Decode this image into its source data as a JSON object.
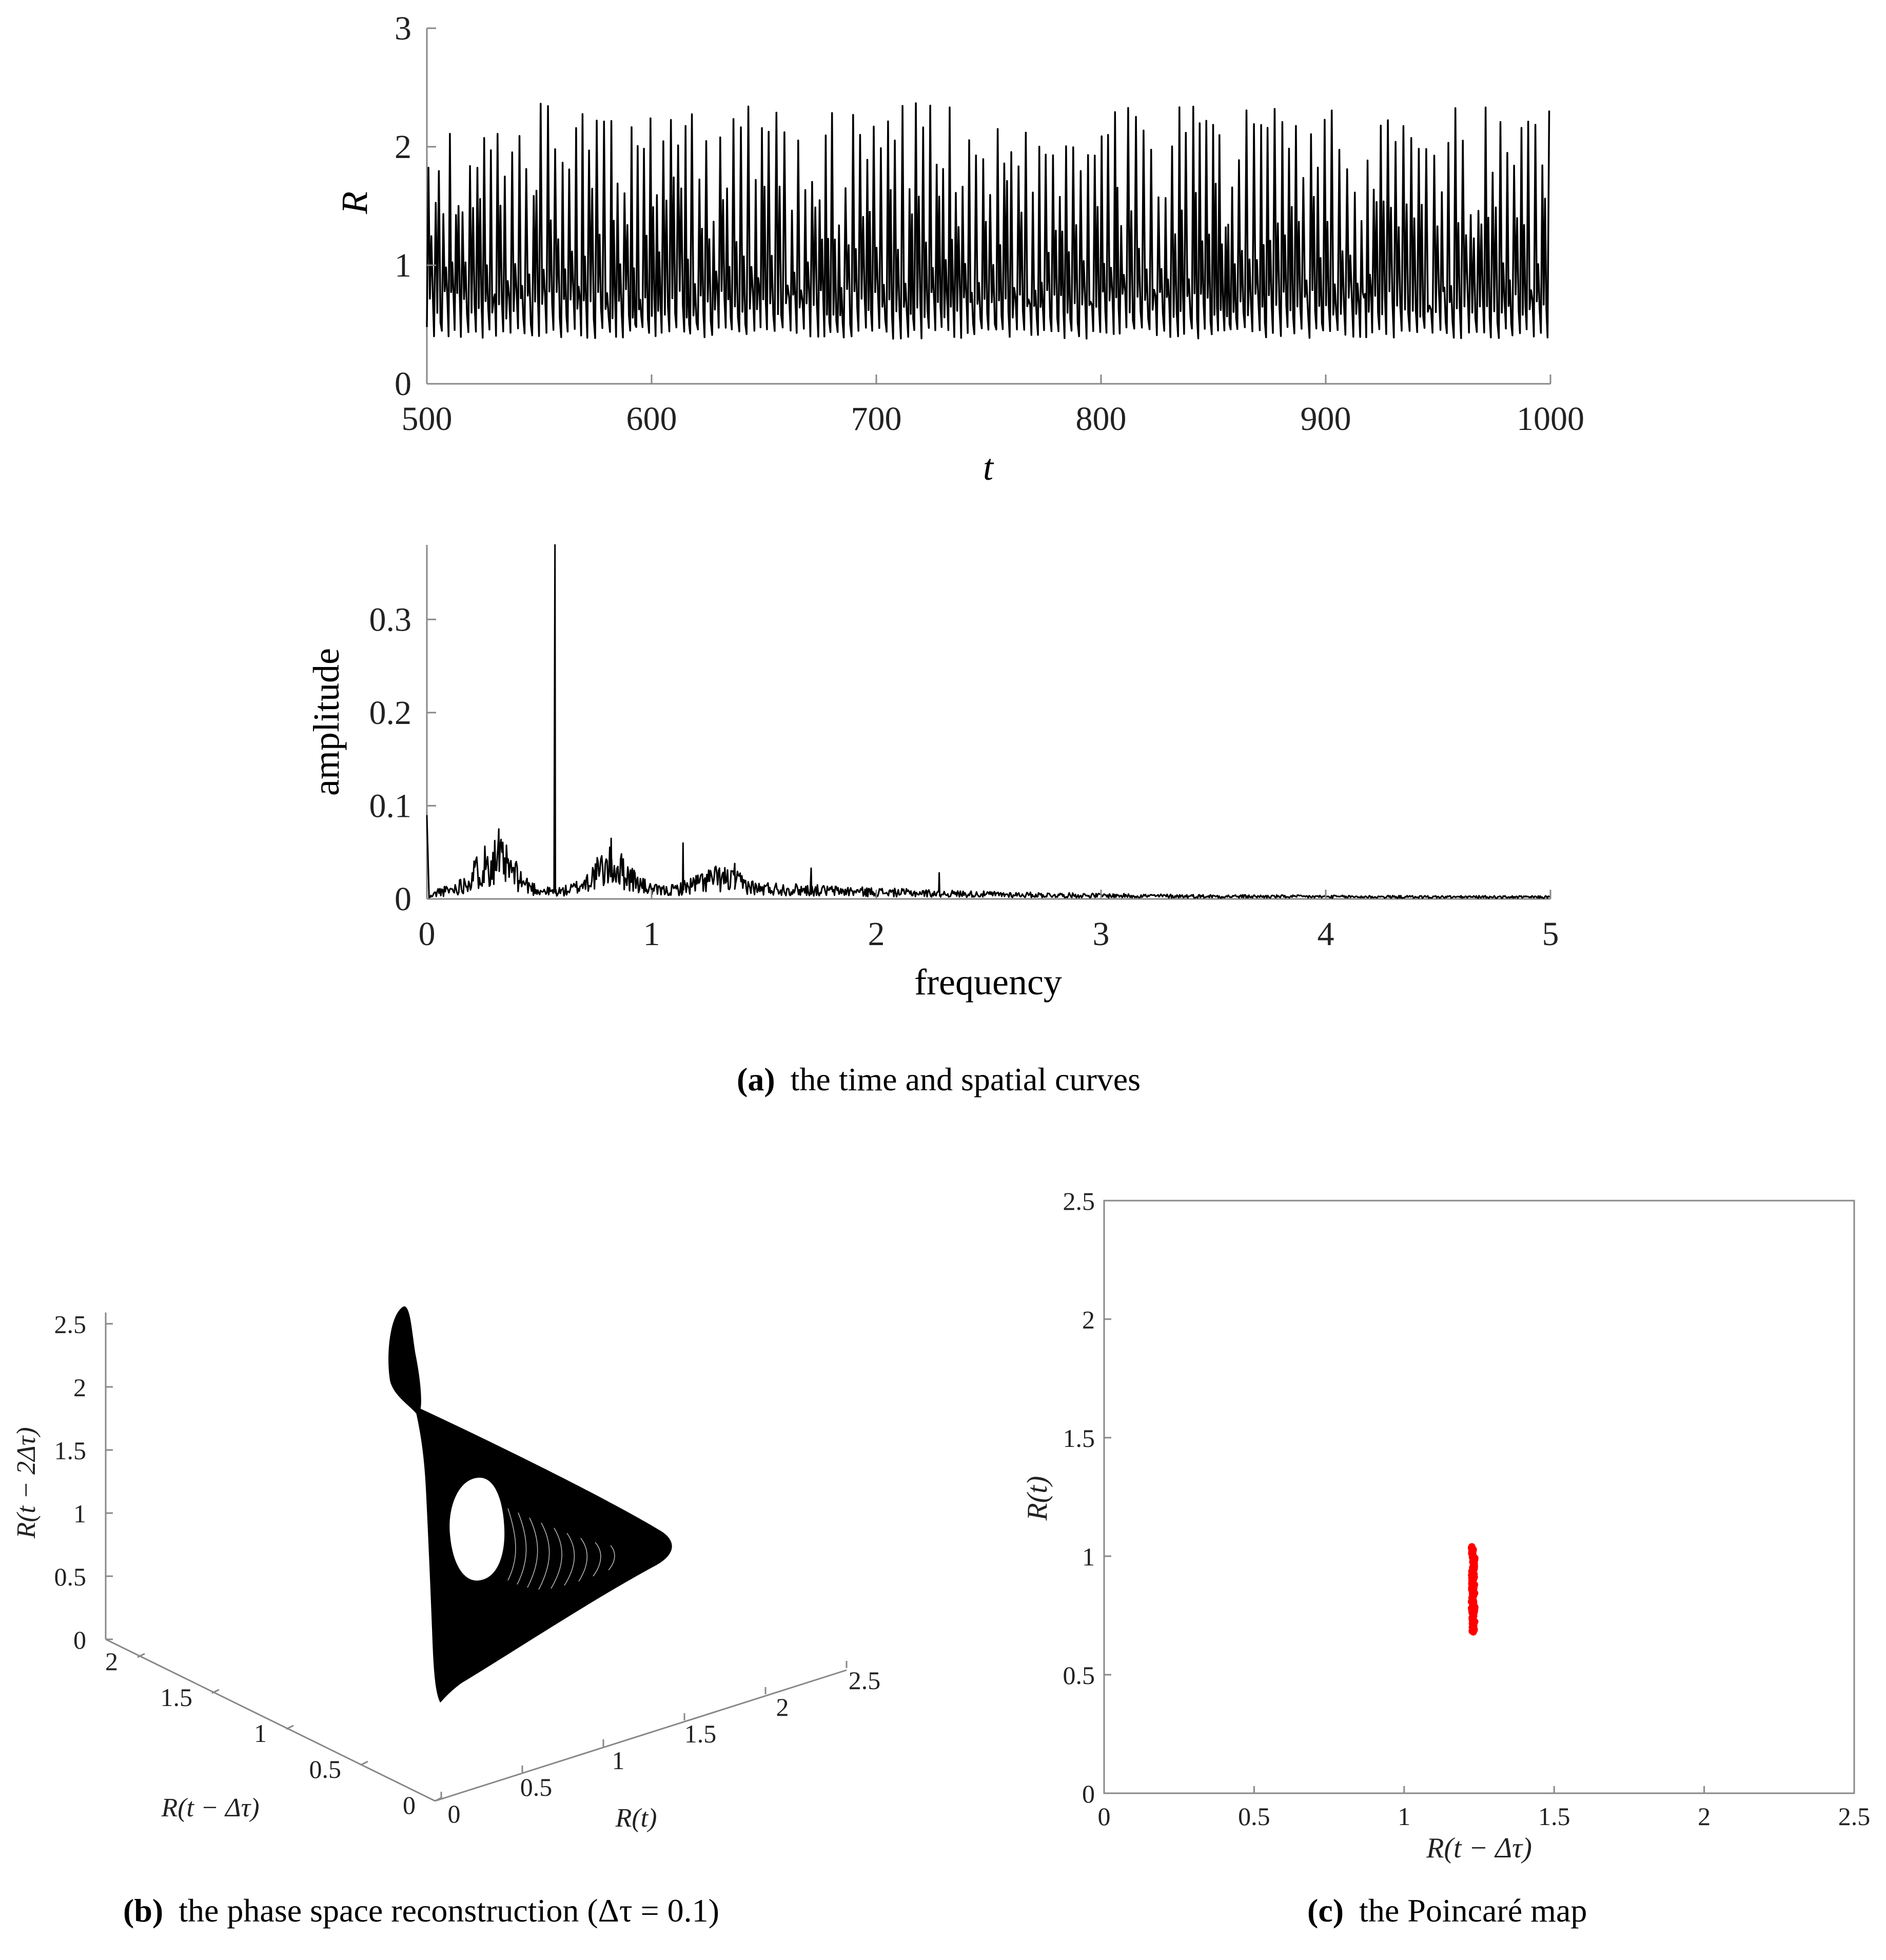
{
  "chart_data": [
    {
      "id": "a-top",
      "type": "line",
      "xlabel": "t",
      "ylabel": "R",
      "xlim": [
        500,
        1000
      ],
      "ylim": [
        0,
        3
      ],
      "xticks": [
        "500",
        "600",
        "700",
        "800",
        "900",
        "1000"
      ],
      "yticks": [
        "0",
        "1",
        "2",
        "3"
      ],
      "series": [
        {
          "description_values": {
            "min": 0.38,
            "max": 2.38,
            "mean_oscillation_period": 3.1
          }
        }
      ]
    },
    {
      "id": "a-bottom",
      "type": "line",
      "xlabel": "frequency",
      "ylabel": "amplitude",
      "xlim": [
        0,
        5
      ],
      "ylim": [
        0,
        0.38
      ],
      "xticks": [
        "0",
        "1",
        "2",
        "3",
        "4",
        "5"
      ],
      "yticks": [
        "0",
        "0.1",
        "0.2",
        "0.3"
      ],
      "peaks": [
        {
          "x": 0.0,
          "y": 0.09
        },
        {
          "x": 0.32,
          "y": 0.075
        },
        {
          "x": 0.57,
          "y": 0.38
        },
        {
          "x": 0.82,
          "y": 0.065
        },
        {
          "x": 1.14,
          "y": 0.06
        },
        {
          "x": 1.37,
          "y": 0.038
        },
        {
          "x": 1.71,
          "y": 0.033
        },
        {
          "x": 2.28,
          "y": 0.028
        }
      ]
    },
    {
      "id": "b",
      "type": "scatter",
      "xlabel": "R(t − Δτ)",
      "ylabel": "R(t − 2Δτ)",
      "zlabel": "R(t)",
      "ztick_labels": [
        "0",
        "0.5",
        "1",
        "1.5",
        "2",
        "2.5"
      ],
      "xtick_labels": [
        "0",
        "0.5",
        "1",
        "1.5",
        "2"
      ],
      "rtick_labels": [
        "0",
        "0.5",
        "1",
        "1.5",
        "2",
        "2.5"
      ]
    },
    {
      "id": "c",
      "type": "scatter",
      "xlabel": "R(t − Δτ)",
      "ylabel": "R(t)",
      "xlim": [
        0,
        2.5
      ],
      "ylim": [
        0,
        2.5
      ],
      "xticks": [
        "0",
        "0.5",
        "1",
        "1.5",
        "2",
        "2.5"
      ],
      "yticks": [
        "0",
        "0.5",
        "1",
        "1.5",
        "2",
        "2.5"
      ],
      "points": {
        "x": 1.23,
        "y_min": 0.68,
        "y_max": 1.04,
        "color": "#ff0000"
      }
    }
  ],
  "captions": {
    "a_letter": "(a)",
    "a_text": "the time and spatial curves",
    "b_letter": "(b)",
    "b_text": "the phase space reconstruction (Δτ = 0.1)",
    "c_letter": "(c)",
    "c_text": "the Poincaré map"
  },
  "colors": {
    "line": "#000000",
    "points": "#ff0000",
    "axis": "#888888"
  }
}
